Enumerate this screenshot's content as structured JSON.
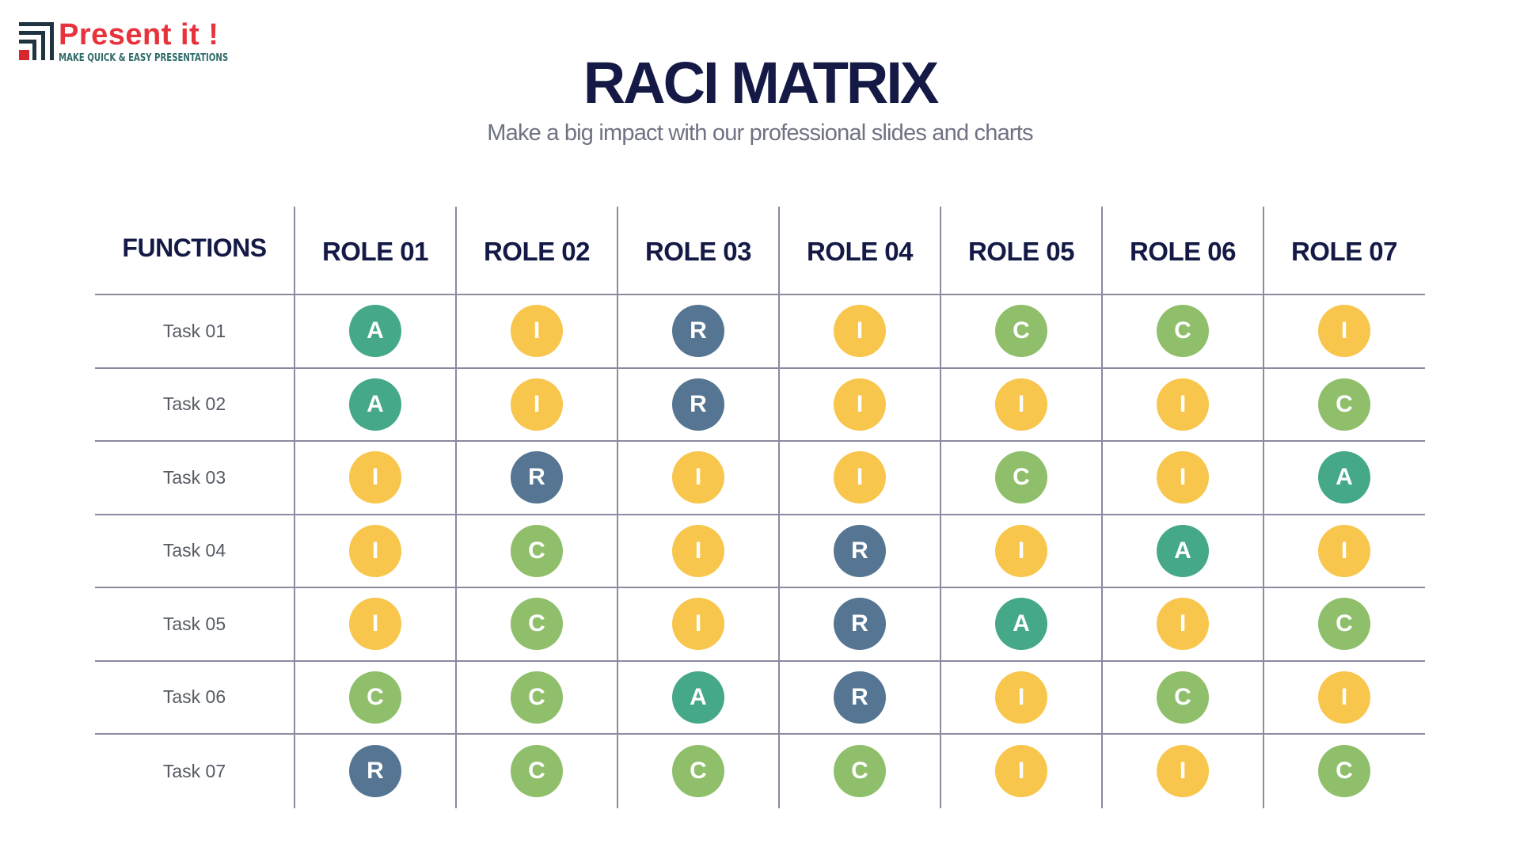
{
  "logo": {
    "name": "Present it !",
    "tagline": "MAKE QUICK & EASY PRESENTATIONS"
  },
  "title": "RACI MATRIX",
  "subtitle": "Make a big impact with our professional slides and charts",
  "colors": {
    "A": "#44a889",
    "I": "#f8c64c",
    "R": "#557592",
    "C": "#8fbf6a"
  },
  "table": {
    "corner_header": "FUNCTIONS",
    "roles": [
      "ROLE 01",
      "ROLE 02",
      "ROLE 03",
      "ROLE 04",
      "ROLE 05",
      "ROLE 06",
      "ROLE 07"
    ],
    "rows": [
      {
        "task": "Task 01",
        "values": [
          "A",
          "I",
          "R",
          "I",
          "C",
          "C",
          "I"
        ]
      },
      {
        "task": "Task 02",
        "values": [
          "A",
          "I",
          "R",
          "I",
          "I",
          "I",
          "C"
        ]
      },
      {
        "task": "Task 03",
        "values": [
          "I",
          "R",
          "I",
          "I",
          "C",
          "I",
          "A"
        ]
      },
      {
        "task": "Task 04",
        "values": [
          "I",
          "C",
          "I",
          "R",
          "I",
          "A",
          "I"
        ]
      },
      {
        "task": "Task 05",
        "values": [
          "I",
          "C",
          "I",
          "R",
          "A",
          "I",
          "C"
        ]
      },
      {
        "task": "Task 06",
        "values": [
          "C",
          "C",
          "A",
          "R",
          "I",
          "C",
          "I"
        ]
      },
      {
        "task": "Task 07",
        "values": [
          "R",
          "C",
          "C",
          "C",
          "I",
          "I",
          "C"
        ]
      }
    ]
  }
}
